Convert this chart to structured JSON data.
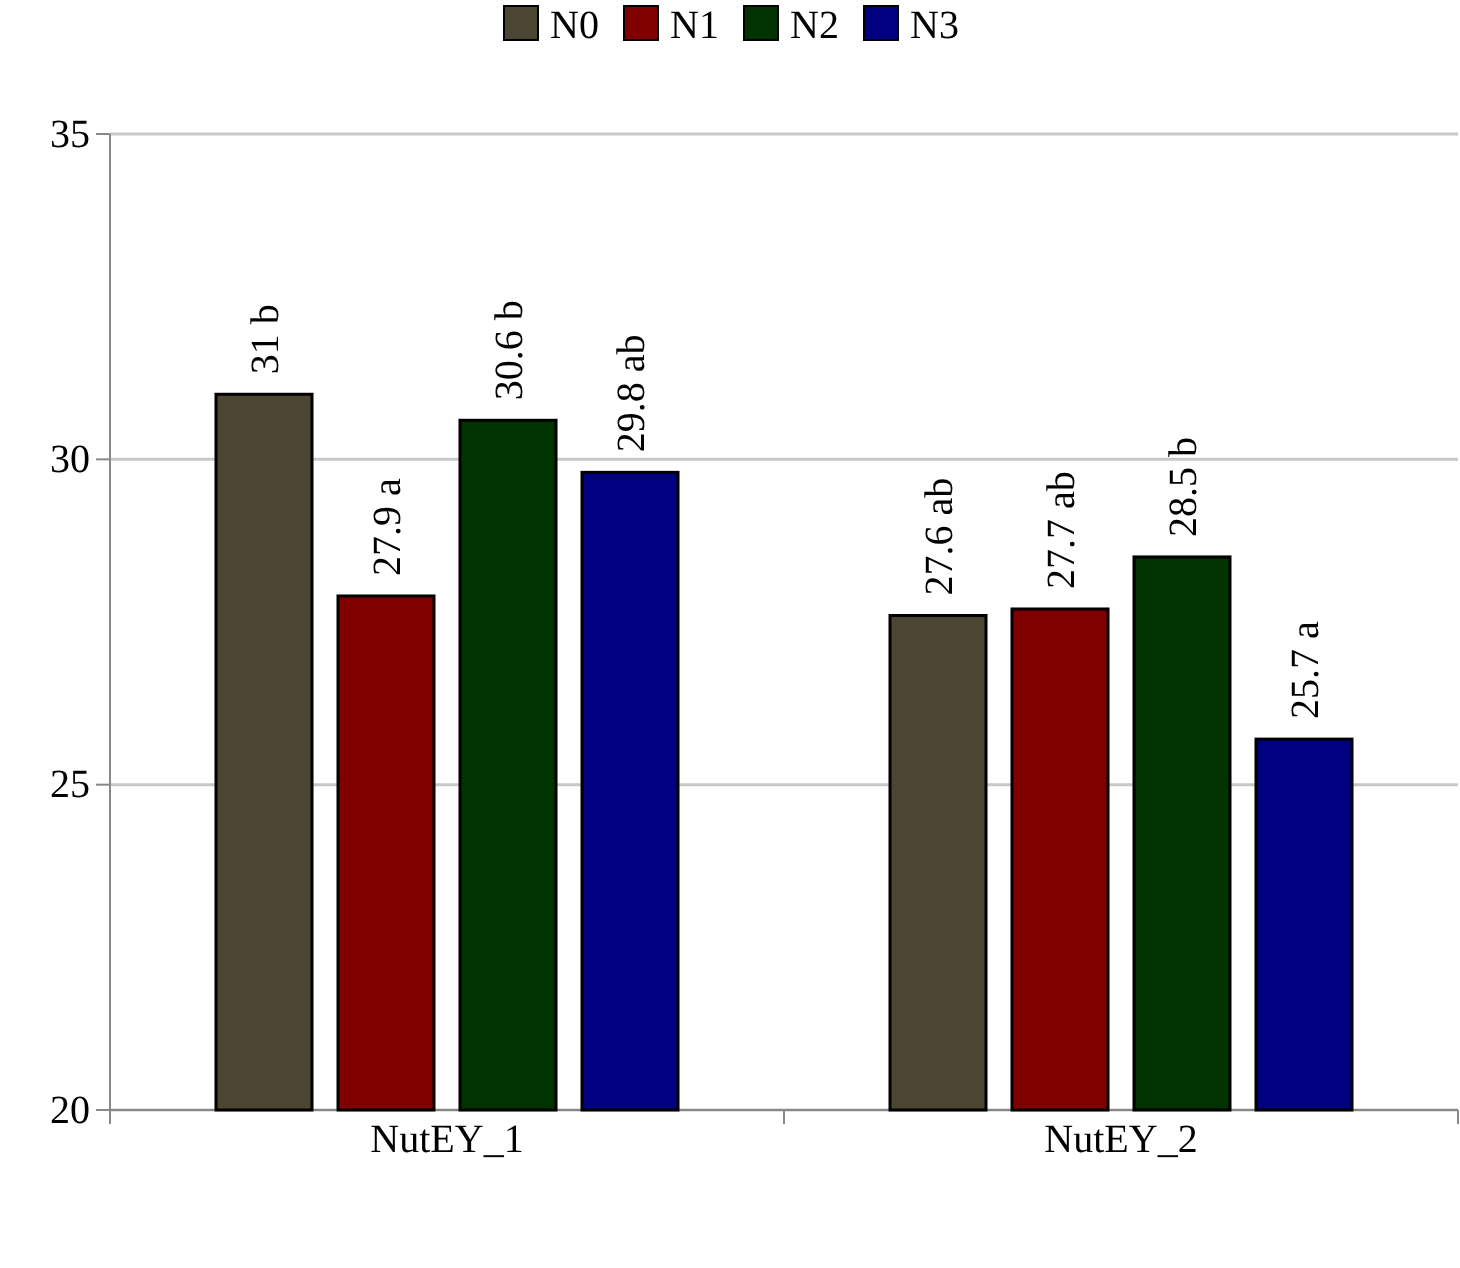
{
  "chart_data": {
    "type": "bar",
    "categories": [
      "NutEY_1",
      "NutEY_2"
    ],
    "series": [
      {
        "name": "N0",
        "color": "#4b4632",
        "values": [
          31,
          27.6
        ],
        "value_labels": [
          "31 b",
          "27.6 ab"
        ]
      },
      {
        "name": "N1",
        "color": "#800000",
        "values": [
          27.9,
          27.7
        ],
        "value_labels": [
          "27.9 a",
          "27.7 ab"
        ]
      },
      {
        "name": "N2",
        "color": "#003300",
        "values": [
          30.6,
          28.5
        ],
        "value_labels": [
          "30.6 b",
          "28.5 b"
        ]
      },
      {
        "name": "N3",
        "color": "#000080",
        "values": [
          29.8,
          25.7
        ],
        "value_labels": [
          "29.8 ab",
          "25.7 a"
        ]
      }
    ],
    "ylim": [
      20,
      35
    ],
    "yticks": [
      20,
      25,
      30,
      35
    ],
    "grid": "y",
    "legend": "top"
  }
}
